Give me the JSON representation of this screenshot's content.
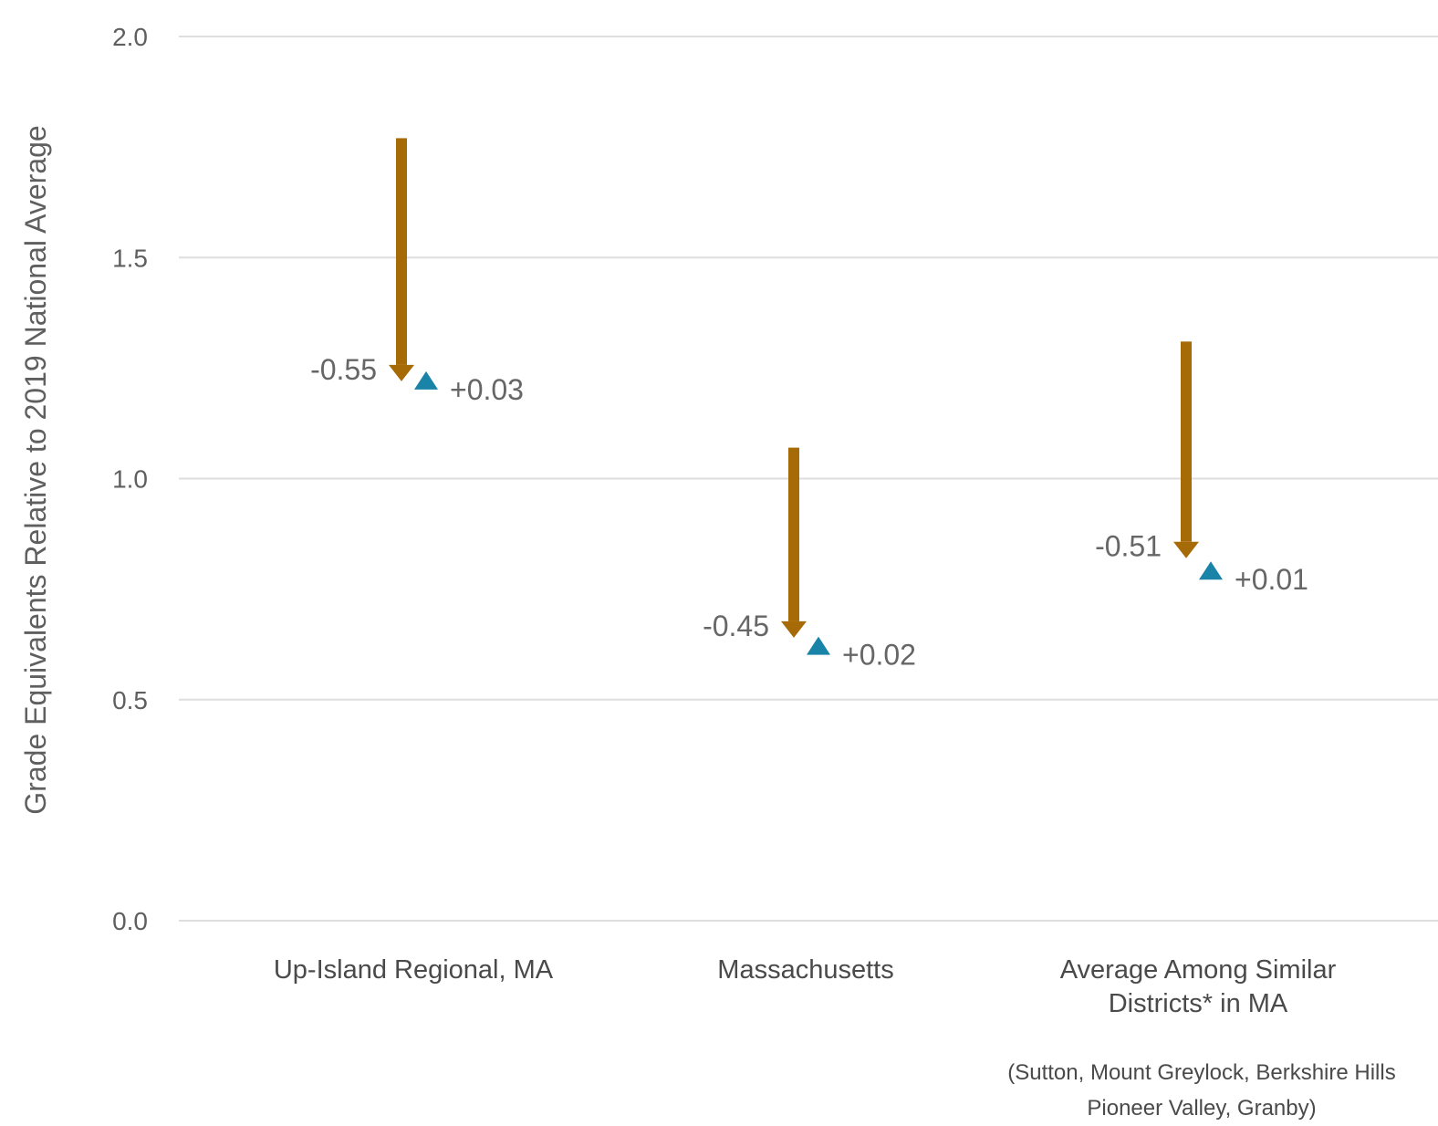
{
  "chart_data": {
    "type": "arrow-range",
    "ylabel": "Grade Equivalents Relative to 2019 National Average",
    "ylim": [
      0,
      2
    ],
    "yticks": [
      "0.0",
      "0.5",
      "1.0",
      "1.5",
      "2.0"
    ],
    "grid": true,
    "categories": [
      {
        "label_lines": [
          "Up-Island Regional, MA"
        ],
        "start": 1.77,
        "end": 1.22,
        "change_label": "-0.55",
        "recovery_value": 1.22,
        "recovery_label": "+0.03"
      },
      {
        "label_lines": [
          "Massachusetts"
        ],
        "start": 1.07,
        "end": 0.64,
        "change_label": "-0.45",
        "recovery_value": 0.62,
        "recovery_label": "+0.02"
      },
      {
        "label_lines": [
          "Average Among Similar",
          "Districts* in MA"
        ],
        "start": 1.31,
        "end": 0.82,
        "change_label": "-0.51",
        "recovery_value": 0.79,
        "recovery_label": "+0.01"
      }
    ],
    "note_lines": [
      "(Sutton, Mount Greylock, Berkshire Hills",
      "Pioneer Valley, Granby)"
    ],
    "colors": {
      "decline": "#a66a07",
      "recovery": "#1a83a8",
      "grid": "#dedede"
    }
  }
}
